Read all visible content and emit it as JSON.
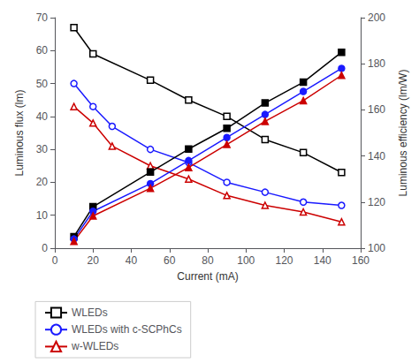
{
  "chart_data": {
    "type": "line",
    "xlabel": "Current (mA)",
    "ylabel": "Luminous flux (lm)",
    "y2label": "Luminous efficiency (lm/W)",
    "xlim": [
      0,
      160
    ],
    "xticks": [
      0,
      20,
      40,
      60,
      80,
      100,
      120,
      140,
      160
    ],
    "ylim": [
      0,
      70
    ],
    "yticks": [
      0,
      10,
      20,
      30,
      40,
      50,
      60,
      70
    ],
    "y2lim": [
      100,
      200
    ],
    "y2ticks": [
      100,
      120,
      140,
      160,
      180,
      200
    ],
    "grid": false,
    "legend": "lower left",
    "series": [
      {
        "name": "WLEDs",
        "color": "#000000",
        "marker": "square-open",
        "axis": "y",
        "x": [
          10,
          20,
          50,
          70,
          90,
          110,
          130,
          150
        ],
        "values": [
          67,
          59,
          51,
          45,
          40,
          33,
          29,
          23
        ]
      },
      {
        "name": "WLEDs with c-SCPhCs",
        "color": "#1a1aff",
        "marker": "circle-open",
        "axis": "y",
        "x": [
          10,
          20,
          30,
          50,
          70,
          90,
          110,
          130,
          150
        ],
        "values": [
          50,
          43,
          37,
          30,
          26,
          20,
          17,
          14,
          13
        ]
      },
      {
        "name": "w-WLEDs",
        "color": "#cc0000",
        "marker": "triangle-open",
        "axis": "y",
        "x": [
          10,
          20,
          30,
          50,
          70,
          90,
          110,
          130,
          150
        ],
        "values": [
          43,
          38,
          31,
          25,
          21,
          16,
          13,
          11,
          8
        ]
      },
      {
        "name": "WLEDs",
        "color": "#000000",
        "marker": "square",
        "axis": "y2",
        "x": [
          10,
          20,
          50,
          70,
          90,
          110,
          130,
          150
        ],
        "values": [
          105,
          118,
          133,
          143,
          152,
          163,
          172,
          185
        ]
      },
      {
        "name": "WLEDs with c-SCPhCs",
        "color": "#1a1aff",
        "marker": "circle",
        "axis": "y2",
        "x": [
          10,
          20,
          50,
          70,
          90,
          110,
          130,
          150
        ],
        "values": [
          104,
          116,
          128,
          138,
          148,
          158,
          168,
          178
        ]
      },
      {
        "name": "w-WLEDs",
        "color": "#cc0000",
        "marker": "triangle",
        "axis": "y2",
        "x": [
          10,
          20,
          50,
          70,
          90,
          110,
          130,
          150
        ],
        "values": [
          103,
          114,
          126,
          135,
          145,
          155,
          164,
          175
        ]
      }
    ]
  }
}
